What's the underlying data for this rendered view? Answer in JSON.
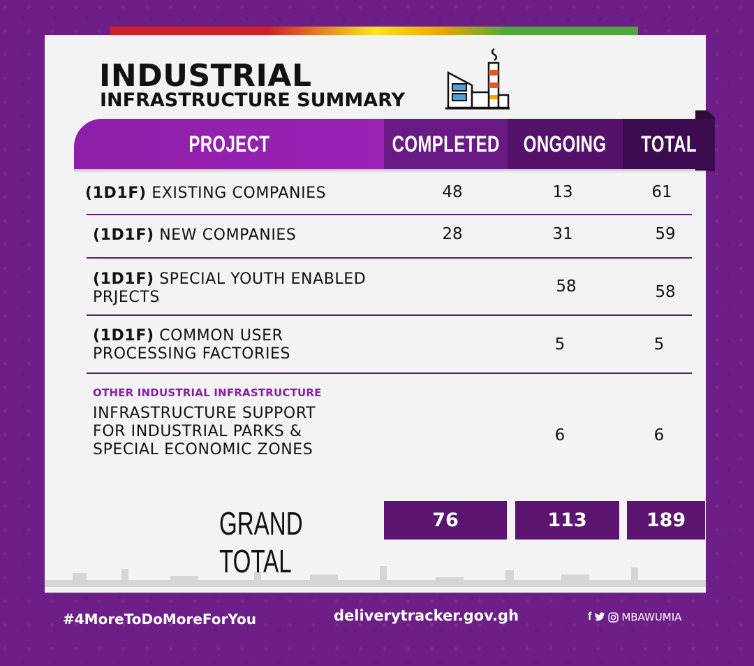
{
  "header": {
    "title_line1": "INDUSTRIAL",
    "title_line2": "INFRASTRUCTURE SUMMARY",
    "icon": "factory-icon"
  },
  "table": {
    "columns": [
      "PROJECT",
      "COMPLETED",
      "ONGOING",
      "TOTAL"
    ],
    "rows": [
      {
        "prefix": "(1D1F)",
        "label": "EXISTING COMPANIES",
        "completed": "48",
        "ongoing": "13",
        "total": "61"
      },
      {
        "prefix": "(1D1F)",
        "label": "NEW COMPANIES",
        "completed": "28",
        "ongoing": "31",
        "total": "59"
      },
      {
        "prefix": "(1D1F)",
        "label_line1": "SPECIAL YOUTH ENABLED",
        "label_line2": "PRJECTS",
        "completed": "",
        "ongoing": "58",
        "total": "58"
      },
      {
        "prefix": "(1D1F)",
        "label_line1": "COMMON USER",
        "label_line2": "PROCESSING FACTORIES",
        "completed": "",
        "ongoing": "5",
        "total": "5"
      },
      {
        "category": "OTHER INDUSTRIAL INFRASTRUCTURE",
        "label_line1": "INFRASTRUCTURE SUPPORT",
        "label_line2": "FOR INDUSTRIAL PARKS &",
        "label_line3": "SPECIAL ECONOMIC ZONES",
        "completed": "",
        "ongoing": "6",
        "total": "6"
      }
    ],
    "grand_total": {
      "label": "GRAND TOTAL",
      "completed": "76",
      "ongoing": "113",
      "total": "189"
    }
  },
  "footer": {
    "hashtag": "#4MoreToDoMoreForYou",
    "website": "deliverytracker.gov.gh",
    "social_handle": "MBAWUMIA",
    "social_icons": [
      "facebook-icon",
      "twitter-icon",
      "instagram-icon"
    ]
  },
  "colors": {
    "background": "#6d1f87",
    "header_project": "#9a22b5",
    "header_completed": "#6a1a84",
    "header_ongoing": "#54126a",
    "header_total": "#3d0b4f",
    "grand_total_box": "#5b1570",
    "category_text": "#8b1fa8"
  }
}
